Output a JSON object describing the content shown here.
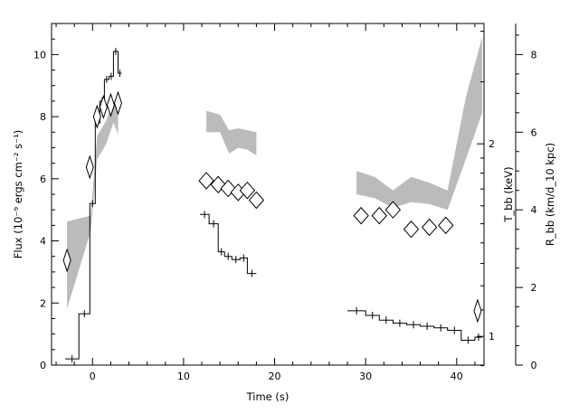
{
  "chart_data": {
    "type": "line",
    "title": "",
    "xlabel": "Time (s)",
    "ylabel_left": "Flux (10⁻⁹ ergs cm⁻² s⁻¹)",
    "ylabel_right_inner": "T_bb (keV)",
    "ylabel_right_outer": "R_bb (km/d_10 kpc)",
    "xlim": [
      -4.5,
      43
    ],
    "ylim_flux": [
      0,
      11
    ],
    "ylim_rbb": [
      0,
      8.8
    ],
    "x_ticks": [
      0,
      10,
      20,
      30,
      40
    ],
    "y_ticks_flux": [
      0,
      2,
      4,
      6,
      8,
      10
    ],
    "y_ticks_rbb": [
      0,
      2,
      4,
      6,
      8
    ],
    "tbb_ticks": [
      {
        "label": "1",
        "value": 1
      },
      {
        "label": "2",
        "value": 2
      }
    ],
    "tbb_scale": "log",
    "tbb_anchor_points": [
      {
        "tbb": 1,
        "rbb": 0.74
      },
      {
        "tbb": 2,
        "rbb": 5.7
      }
    ],
    "grid": false,
    "series": [
      {
        "name": "Flux",
        "style": "histogram",
        "color": "#000000",
        "segments": [
          {
            "points": [
              {
                "x0": -3.0,
                "x1": -1.5,
                "y": 0.2
              },
              {
                "x0": -1.5,
                "x1": -0.3,
                "y": 1.65
              },
              {
                "x0": -0.3,
                "x1": 0.3,
                "y": 5.2
              },
              {
                "x0": 0.3,
                "x1": 0.8,
                "y": 7.8
              },
              {
                "x0": 0.8,
                "x1": 1.3,
                "y": 8.5
              },
              {
                "x0": 1.3,
                "x1": 1.8,
                "y": 9.2
              },
              {
                "x0": 1.8,
                "x1": 2.3,
                "y": 9.3
              },
              {
                "x0": 2.3,
                "x1": 2.8,
                "y": 10.1
              },
              {
                "x0": 2.8,
                "x1": 3.2,
                "y": 9.4
              }
            ]
          },
          {
            "points": [
              {
                "x0": 11.8,
                "x1": 12.8,
                "y": 4.85
              },
              {
                "x0": 12.8,
                "x1": 13.8,
                "y": 4.55
              },
              {
                "x0": 13.8,
                "x1": 14.5,
                "y": 3.65
              },
              {
                "x0": 14.5,
                "x1": 15.3,
                "y": 3.5
              },
              {
                "x0": 15.3,
                "x1": 16.2,
                "y": 3.4
              },
              {
                "x0": 16.2,
                "x1": 17.0,
                "y": 3.45
              },
              {
                "x0": 17.0,
                "x1": 18.0,
                "y": 2.95
              }
            ]
          },
          {
            "points": [
              {
                "x0": 28.0,
                "x1": 30.0,
                "y": 1.75
              },
              {
                "x0": 30.0,
                "x1": 31.5,
                "y": 1.6
              },
              {
                "x0": 31.5,
                "x1": 33.0,
                "y": 1.45
              },
              {
                "x0": 33.0,
                "x1": 34.5,
                "y": 1.35
              },
              {
                "x0": 34.5,
                "x1": 36.0,
                "y": 1.3
              },
              {
                "x0": 36.0,
                "x1": 37.5,
                "y": 1.25
              },
              {
                "x0": 37.5,
                "x1": 39.0,
                "y": 1.2
              },
              {
                "x0": 39.0,
                "x1": 40.5,
                "y": 1.12
              },
              {
                "x0": 40.5,
                "x1": 42.0,
                "y": 0.8
              },
              {
                "x0": 42.0,
                "x1": 42.8,
                "y": 0.9
              }
            ]
          }
        ]
      },
      {
        "name": "T_bb",
        "style": "band",
        "color": "#bbbbbb",
        "segments": [
          {
            "points": [
              {
                "x": -2.8,
                "lo": 1.45,
                "hi": 3.7
              },
              {
                "x": -0.2,
                "lo": 3.45,
                "hi": 3.85
              },
              {
                "x": 0.5,
                "lo": 5.3,
                "hi": 5.9
              },
              {
                "x": 1.5,
                "lo": 5.7,
                "hi": 6.3
              },
              {
                "x": 2.3,
                "lo": 6.25,
                "hi": 6.8
              },
              {
                "x": 2.8,
                "lo": 5.95,
                "hi": 6.5
              }
            ]
          },
          {
            "points": [
              {
                "x": 12.5,
                "lo": 6.0,
                "hi": 6.55
              },
              {
                "x": 14.0,
                "lo": 6.0,
                "hi": 6.45
              },
              {
                "x": 15.0,
                "lo": 5.45,
                "hi": 6.05
              },
              {
                "x": 16.0,
                "lo": 5.6,
                "hi": 6.1
              },
              {
                "x": 17.0,
                "lo": 5.55,
                "hi": 6.05
              },
              {
                "x": 18.0,
                "lo": 5.4,
                "hi": 6.0
              }
            ]
          },
          {
            "points": [
              {
                "x": 29.0,
                "lo": 4.4,
                "hi": 5.0
              },
              {
                "x": 31.0,
                "lo": 4.3,
                "hi": 4.85
              },
              {
                "x": 33.0,
                "lo": 4.05,
                "hi": 4.5
              },
              {
                "x": 35.0,
                "lo": 4.2,
                "hi": 4.85
              },
              {
                "x": 37.0,
                "lo": 4.15,
                "hi": 4.7
              },
              {
                "x": 39.0,
                "lo": 4.0,
                "hi": 4.5
              },
              {
                "x": 41.0,
                "lo": 5.3,
                "hi": 6.9
              },
              {
                "x": 42.8,
                "lo": 6.5,
                "hi": 8.45
              }
            ]
          }
        ]
      },
      {
        "name": "R_bb",
        "style": "diamonds",
        "color": "#000000",
        "points": [
          {
            "x": -2.8,
            "y": 2.7
          },
          {
            "x": -0.3,
            "y": 5.1
          },
          {
            "x": 0.5,
            "y": 6.4
          },
          {
            "x": 1.2,
            "y": 6.65
          },
          {
            "x": 2.0,
            "y": 6.7
          },
          {
            "x": 2.8,
            "y": 6.75
          },
          {
            "x": 12.5,
            "y": 4.75
          },
          {
            "x": 13.8,
            "y": 4.65
          },
          {
            "x": 14.9,
            "y": 4.55
          },
          {
            "x": 16.0,
            "y": 4.45
          },
          {
            "x": 17.0,
            "y": 4.5
          },
          {
            "x": 18.0,
            "y": 4.25
          },
          {
            "x": 29.5,
            "y": 3.85
          },
          {
            "x": 31.5,
            "y": 3.85
          },
          {
            "x": 33.0,
            "y": 4.0
          },
          {
            "x": 35.0,
            "y": 3.5
          },
          {
            "x": 37.0,
            "y": 3.55
          },
          {
            "x": 38.8,
            "y": 3.6
          },
          {
            "x": 42.3,
            "y": 1.4
          }
        ]
      }
    ]
  }
}
